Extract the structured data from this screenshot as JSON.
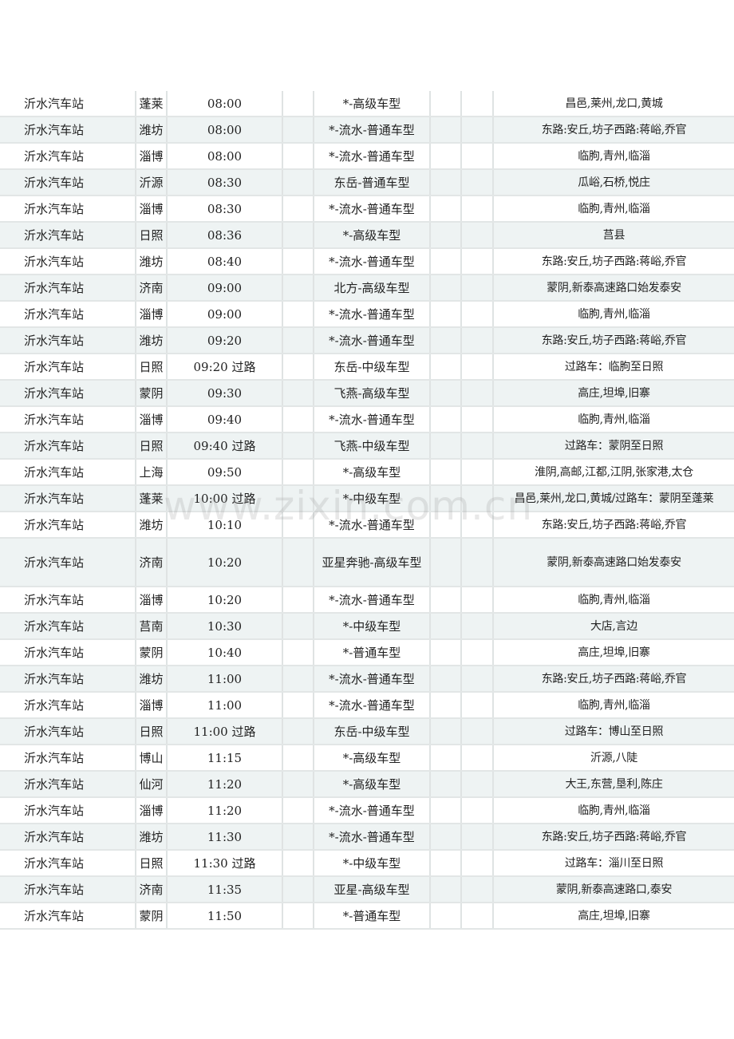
{
  "watermark": "www.zixin.com.cn",
  "rows": [
    [
      "沂水汽车站",
      "蓬莱",
      "08:00",
      "",
      "*-高级车型",
      "",
      "",
      "昌邑,莱州,龙口,黄城"
    ],
    [
      "沂水汽车站",
      "潍坊",
      "08:00",
      "",
      "*-流水-普通车型",
      "",
      "",
      "东路:安丘,坊子西路:蒋峪,乔官"
    ],
    [
      "沂水汽车站",
      "淄博",
      "08:00",
      "",
      "*-流水-普通车型",
      "",
      "",
      "临朐,青州,临淄"
    ],
    [
      "沂水汽车站",
      "沂源",
      "08:30",
      "",
      "东岳-普通车型",
      "",
      "",
      "瓜峪,石桥,悦庄"
    ],
    [
      "沂水汽车站",
      "淄博",
      "08:30",
      "",
      "*-流水-普通车型",
      "",
      "",
      "临朐,青州,临淄"
    ],
    [
      "沂水汽车站",
      "日照",
      "08:36",
      "",
      "*-高级车型",
      "",
      "",
      "莒县"
    ],
    [
      "沂水汽车站",
      "潍坊",
      "08:40",
      "",
      "*-流水-普通车型",
      "",
      "",
      "东路:安丘,坊子西路:蒋峪,乔官"
    ],
    [
      "沂水汽车站",
      "济南",
      "09:00",
      "",
      "北方-高级车型",
      "",
      "",
      "蒙阴,新泰高速路口始发泰安"
    ],
    [
      "沂水汽车站",
      "淄博",
      "09:00",
      "",
      "*-流水-普通车型",
      "",
      "",
      "临朐,青州,临淄"
    ],
    [
      "沂水汽车站",
      "潍坊",
      "09:20",
      "",
      "*-流水-普通车型",
      "",
      "",
      "东路:安丘,坊子西路:蒋峪,乔官"
    ],
    [
      "沂水汽车站",
      "日照",
      "09:20 过路",
      "",
      "东岳-中级车型",
      "",
      "",
      "过路车：临朐至日照"
    ],
    [
      "沂水汽车站",
      "蒙阴",
      "09:30",
      "",
      "飞燕-高级车型",
      "",
      "",
      "高庄,坦埠,旧寨"
    ],
    [
      "沂水汽车站",
      "淄博",
      "09:40",
      "",
      "*-流水-普通车型",
      "",
      "",
      "临朐,青州,临淄"
    ],
    [
      "沂水汽车站",
      "日照",
      "09:40 过路",
      "",
      "飞燕-中级车型",
      "",
      "",
      "过路车：蒙阴至日照"
    ],
    [
      "沂水汽车站",
      "上海",
      "09:50",
      "",
      "*-高级车型",
      "",
      "",
      "淮阴,高邮,江都,江阴,张家港,太仓"
    ],
    [
      "沂水汽车站",
      "蓬莱",
      "10:00 过路",
      "",
      "*-中级车型",
      "",
      "",
      "昌邑,莱州,龙口,黄城/过路车：蒙阴至蓬莱"
    ],
    [
      "沂水汽车站",
      "潍坊",
      "10:10",
      "",
      "*-流水-普通车型",
      "",
      "",
      "东路:安丘,坊子西路:蒋峪,乔官"
    ],
    [
      "沂水汽车站",
      "济南",
      "10:20",
      "",
      "亚星奔驰-高级车型",
      "",
      "",
      "蒙阴,新泰高速路口始发泰安"
    ],
    [
      "沂水汽车站",
      "淄博",
      "10:20",
      "",
      "*-流水-普通车型",
      "",
      "",
      "临朐,青州,临淄"
    ],
    [
      "沂水汽车站",
      "莒南",
      "10:30",
      "",
      "*-中级车型",
      "",
      "",
      "大店,言边"
    ],
    [
      "沂水汽车站",
      "蒙阴",
      "10:40",
      "",
      "*-普通车型",
      "",
      "",
      "高庄,坦埠,旧寨"
    ],
    [
      "沂水汽车站",
      "潍坊",
      "11:00",
      "",
      "*-流水-普通车型",
      "",
      "",
      "东路:安丘,坊子西路:蒋峪,乔官"
    ],
    [
      "沂水汽车站",
      "淄博",
      "11:00",
      "",
      "*-流水-普通车型",
      "",
      "",
      "临朐,青州,临淄"
    ],
    [
      "沂水汽车站",
      "日照",
      "11:00 过路",
      "",
      "东岳-中级车型",
      "",
      "",
      "过路车：博山至日照"
    ],
    [
      "沂水汽车站",
      "博山",
      "11:15",
      "",
      "*-高级车型",
      "",
      "",
      "沂源,八陡"
    ],
    [
      "沂水汽车站",
      "仙河",
      "11:20",
      "",
      "*-高级车型",
      "",
      "",
      "大王,东营,垦利,陈庄"
    ],
    [
      "沂水汽车站",
      "淄博",
      "11:20",
      "",
      "*-流水-普通车型",
      "",
      "",
      "临朐,青州,临淄"
    ],
    [
      "沂水汽车站",
      "潍坊",
      "11:30",
      "",
      "*-流水-普通车型",
      "",
      "",
      "东路:安丘,坊子西路:蒋峪,乔官"
    ],
    [
      "沂水汽车站",
      "日照",
      "11:30 过路",
      "",
      "*-中级车型",
      "",
      "",
      "过路车：淄川至日照"
    ],
    [
      "沂水汽车站",
      "济南",
      "11:35",
      "",
      "亚星-高级车型",
      "",
      "",
      "蒙阴,新泰高速路口,泰安"
    ],
    [
      "沂水汽车站",
      "蒙阴",
      "11:50",
      "",
      "*-普通车型",
      "",
      "",
      "高庄,坦埠,旧寨"
    ]
  ]
}
